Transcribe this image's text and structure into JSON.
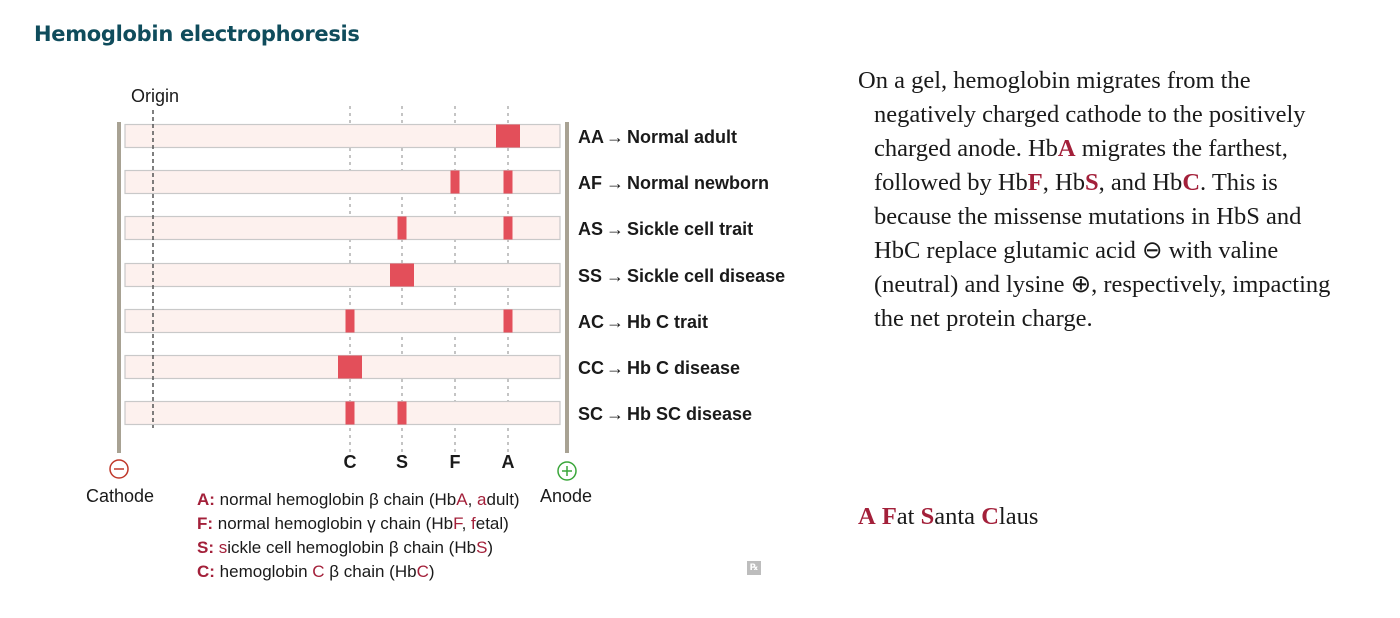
{
  "title": "Hemoglobin electrophoresis",
  "diagram": {
    "origin_label": "Origin",
    "cathode_label": "Cathode",
    "anode_label": "Anode",
    "cathode_symbol": "⊖",
    "anode_symbol": "⊕",
    "columns": [
      "C",
      "S",
      "F",
      "A"
    ],
    "rows": [
      {
        "code": "AA",
        "arrow": "→",
        "desc": "Normal adult",
        "bands": [
          {
            "col": "A",
            "thick": true
          }
        ]
      },
      {
        "code": "AF",
        "arrow": "→",
        "desc": "Normal newborn",
        "bands": [
          {
            "col": "F",
            "thick": false
          },
          {
            "col": "A",
            "thick": false
          }
        ]
      },
      {
        "code": "AS",
        "arrow": "→",
        "desc": "Sickle cell trait",
        "bands": [
          {
            "col": "S",
            "thick": false
          },
          {
            "col": "A",
            "thick": false
          }
        ]
      },
      {
        "code": "SS",
        "arrow": "→",
        "desc": "Sickle cell disease",
        "bands": [
          {
            "col": "S",
            "thick": true
          }
        ]
      },
      {
        "code": "AC",
        "arrow": "→",
        "desc": "Hb C trait",
        "bands": [
          {
            "col": "C",
            "thick": false
          },
          {
            "col": "A",
            "thick": false
          }
        ]
      },
      {
        "code": "CC",
        "arrow": "→",
        "desc": "Hb C disease",
        "bands": [
          {
            "col": "C",
            "thick": true
          }
        ]
      },
      {
        "code": "SC",
        "arrow": "→",
        "desc": "Hb SC disease",
        "bands": [
          {
            "col": "C",
            "thick": false
          },
          {
            "col": "S",
            "thick": false
          }
        ]
      }
    ],
    "colors": {
      "band": "#e34f5a",
      "lane_fill": "#fdf1ee",
      "lane_stroke": "#c9c9c9",
      "electrode": "#a8a293",
      "cathode": "#c0392b",
      "anode": "#3aa63a",
      "accent": "#a3203a"
    }
  },
  "legend": [
    {
      "key": "A:",
      "pre": " normal hemoglobin β chain (Hb",
      "h1": "A",
      "mid": ", ",
      "h2": "a",
      "post": "dult)"
    },
    {
      "key": "F:",
      "pre": " normal hemoglobin γ chain (Hb",
      "h1": "F",
      "mid": ", ",
      "h2": "f",
      "post": "etal)"
    },
    {
      "key": "S:",
      "pre": " ",
      "h1": "s",
      "mid": "ickle cell hemoglobin β chain (Hb",
      "h2": "S",
      "post": ")"
    },
    {
      "key": "C:",
      "pre": " hemoglobin ",
      "h1": "C",
      "mid": " β chain (Hb",
      "h2": "C",
      "post": ")"
    }
  ],
  "rx_icon": "℞",
  "description": {
    "l1": "On a gel, hemoglobin migrates from the",
    "l2": "negatively charged cathode to the positively",
    "l3a": "charged anode. Hb",
    "l3b": "A",
    "l3c": " migrates the farthest,",
    "l4a": "followed by Hb",
    "l4b": "F",
    "l4c": ", Hb",
    "l4d": "S",
    "l4e": ", and Hb",
    "l4f": "C",
    "l4g": ". This is",
    "l5": "because the missense mutations in HbS and",
    "l6": "HbC replace glutamic acid ⊖ with valine",
    "l7": "(neutral) and lysine ⊕, respectively, impacting",
    "l8": "the net protein charge."
  },
  "mnemonic": {
    "a": "A",
    "b": " ",
    "c": "F",
    "d": "at ",
    "e": "S",
    "f": "anta ",
    "g": "C",
    "h": "laus"
  }
}
